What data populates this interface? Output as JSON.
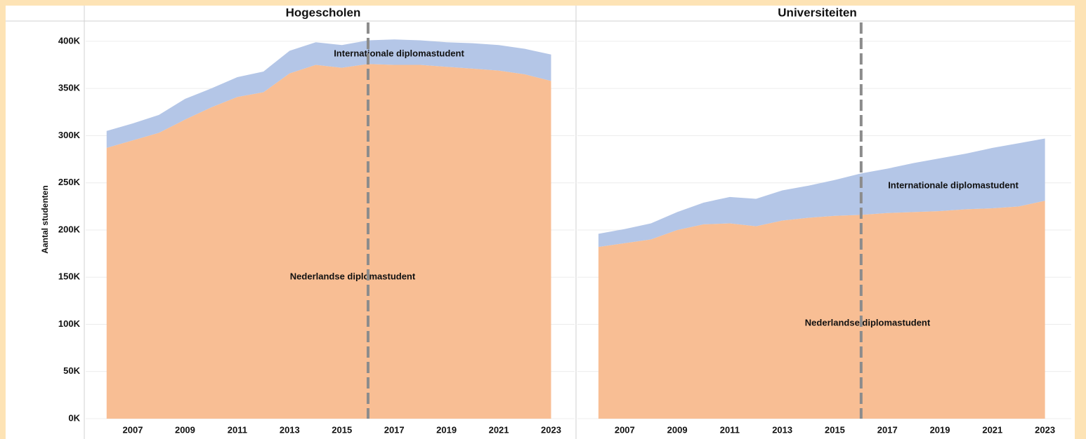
{
  "chart_data": [
    {
      "type": "area",
      "stacked": true,
      "title": "Hogescholen",
      "ylabel": "Aantal studenten",
      "x": [
        2006,
        2007,
        2008,
        2009,
        2010,
        2011,
        2012,
        2013,
        2014,
        2015,
        2016,
        2017,
        2018,
        2019,
        2020,
        2021,
        2022,
        2023
      ],
      "series": [
        {
          "name": "Nederlandse diplomastudent",
          "color": "#f8be94",
          "values": [
            287000,
            295000,
            303000,
            317000,
            330000,
            341000,
            346000,
            366000,
            375000,
            372000,
            376000,
            375000,
            375000,
            373000,
            371000,
            369000,
            365000,
            358000
          ]
        },
        {
          "name": "Internationale diplomastudent",
          "color": "#b4c6e7",
          "values": [
            18000,
            18000,
            19000,
            22000,
            20000,
            21000,
            22000,
            24000,
            24000,
            24000,
            25000,
            27000,
            26000,
            26000,
            27000,
            27000,
            27000,
            28000
          ]
        }
      ],
      "xlim": [
        2005.2,
        2023.9
      ],
      "xticks": [
        2007,
        2009,
        2011,
        2013,
        2015,
        2017,
        2019,
        2021,
        2023
      ],
      "ylim": [
        0,
        420000
      ],
      "yticks": [
        {
          "value": 0,
          "label": "0K"
        },
        {
          "value": 50000,
          "label": "50K"
        },
        {
          "value": 100000,
          "label": "100K"
        },
        {
          "value": 150000,
          "label": "150K"
        },
        {
          "value": 200000,
          "label": "200K"
        },
        {
          "value": 250000,
          "label": "250K"
        },
        {
          "value": 300000,
          "label": "300K"
        },
        {
          "value": 350000,
          "label": "350K"
        },
        {
          "value": 400000,
          "label": "400K"
        }
      ],
      "grid": true,
      "vline": 2016
    },
    {
      "type": "area",
      "stacked": true,
      "title": "Universiteiten",
      "x": [
        2006,
        2007,
        2008,
        2009,
        2010,
        2011,
        2012,
        2013,
        2014,
        2015,
        2016,
        2017,
        2018,
        2019,
        2020,
        2021,
        2022,
        2023
      ],
      "series": [
        {
          "name": "Nederlandse diplomastudent",
          "color": "#f8be94",
          "values": [
            182000,
            186000,
            190000,
            200000,
            206000,
            207000,
            204000,
            210000,
            213000,
            215000,
            216000,
            218000,
            219000,
            220000,
            222000,
            223000,
            225000,
            231000
          ]
        },
        {
          "name": "Internationale diplomastudent",
          "color": "#b4c6e7",
          "values": [
            14000,
            15000,
            17000,
            19000,
            23000,
            28000,
            29000,
            32000,
            34000,
            38000,
            44000,
            47000,
            52000,
            56000,
            59000,
            64000,
            67000,
            66000
          ]
        }
      ],
      "xlim": [
        2005.2,
        2024
      ],
      "xticks": [
        2007,
        2009,
        2011,
        2013,
        2015,
        2017,
        2019,
        2021,
        2023
      ],
      "ylim": [
        0,
        420000
      ],
      "grid": true,
      "vline": 2016
    }
  ]
}
